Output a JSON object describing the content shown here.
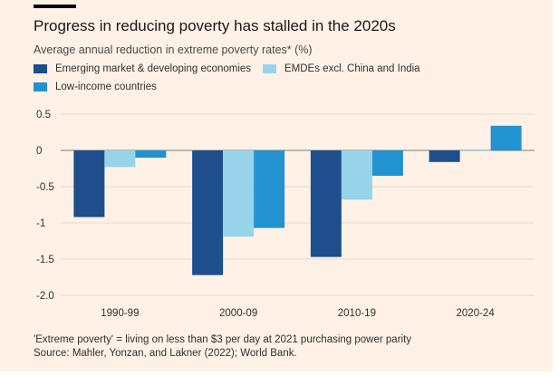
{
  "header": {
    "title": "Progress in reducing poverty has stalled in the 2020s",
    "subtitle": "Average annual reduction in extreme poverty rates* (%)"
  },
  "footer": {
    "note": "'Extreme poverty' = living on less than $3 per day at 2021 purchasing power parity",
    "source": "Source: Mahler, Yonzan, and Lakner (2022); World Bank."
  },
  "chart_data": {
    "type": "bar",
    "title": "Progress in reducing poverty has stalled in the 2020s",
    "subtitle": "Average annual reduction in extreme poverty rates* (%)",
    "categories": [
      "1990-99",
      "2000-09",
      "2010-19",
      "2020-24"
    ],
    "series": [
      {
        "name": "Emerging market & developing economies",
        "color": "#1F4E8C",
        "values": [
          -0.92,
          -1.72,
          -1.47,
          -0.16
        ]
      },
      {
        "name": "EMDEs excl. China and India",
        "color": "#97D4EA",
        "values": [
          -0.23,
          -1.19,
          -0.68,
          -0.01
        ]
      },
      {
        "name": "Low-income countries",
        "color": "#2292D0",
        "values": [
          -0.1,
          -1.07,
          -0.35,
          0.34
        ]
      }
    ],
    "yticks": [
      "0.5",
      "0",
      "-0.5",
      "-1",
      "-1.5",
      "-2.0"
    ],
    "ylim": [
      -2.0,
      0.5
    ],
    "grid": true,
    "legend_position": "top-left",
    "xlabel": "",
    "ylabel": ""
  }
}
